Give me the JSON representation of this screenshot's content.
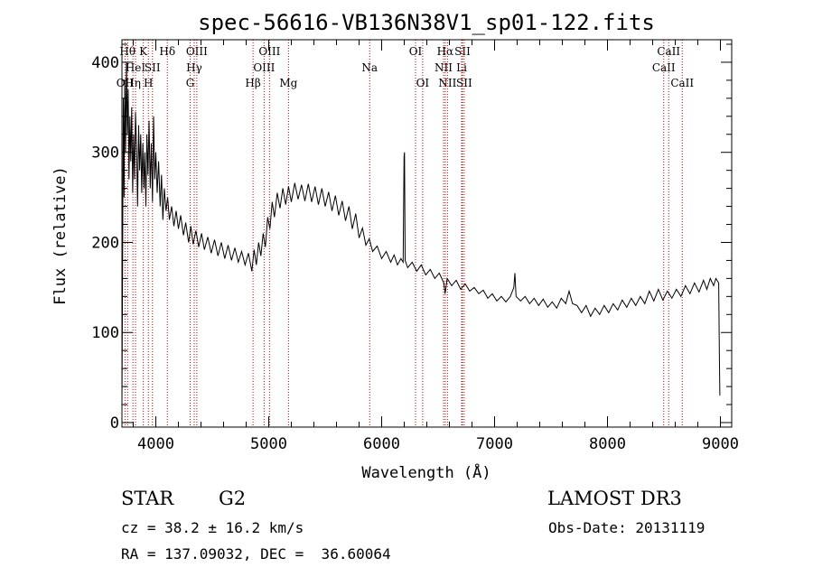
{
  "chart_data": {
    "type": "line",
    "title": "spec-56616-VB136N38V1_sp01-122.fits",
    "xlabel": "Wavelength (Å)",
    "ylabel": "Flux (relative)",
    "xlim": [
      3700,
      9100
    ],
    "ylim": [
      -5,
      425
    ],
    "xticks": [
      4000,
      5000,
      6000,
      7000,
      8000,
      9000
    ],
    "xtick_labels": [
      "4000",
      "5000",
      "6000",
      "7000",
      "8000",
      "9000"
    ],
    "yticks": [
      0,
      100,
      200,
      300,
      400
    ],
    "ytick_labels": [
      "0",
      "100",
      "200",
      "300",
      "400"
    ],
    "series": [
      {
        "name": "flux",
        "points": [
          [
            3700,
            20
          ],
          [
            3705,
            150
          ],
          [
            3712,
            360
          ],
          [
            3718,
            250
          ],
          [
            3725,
            380
          ],
          [
            3732,
            300
          ],
          [
            3740,
            400
          ],
          [
            3748,
            320
          ],
          [
            3755,
            370
          ],
          [
            3762,
            270
          ],
          [
            3770,
            340
          ],
          [
            3778,
            290
          ],
          [
            3786,
            350
          ],
          [
            3795,
            255
          ],
          [
            3803,
            320
          ],
          [
            3812,
            270
          ],
          [
            3820,
            345
          ],
          [
            3830,
            300
          ],
          [
            3838,
            240
          ],
          [
            3848,
            330
          ],
          [
            3857,
            280
          ],
          [
            3866,
            320
          ],
          [
            3875,
            255
          ],
          [
            3885,
            310
          ],
          [
            3894,
            260
          ],
          [
            3902,
            300
          ],
          [
            3912,
            240
          ],
          [
            3921,
            320
          ],
          [
            3930,
            275
          ],
          [
            3940,
            335
          ],
          [
            3950,
            260
          ],
          [
            3960,
            310
          ],
          [
            3970,
            245
          ],
          [
            3980,
            340
          ],
          [
            3990,
            270
          ],
          [
            4000,
            300
          ],
          [
            4012,
            255
          ],
          [
            4025,
            290
          ],
          [
            4038,
            240
          ],
          [
            4050,
            275
          ],
          [
            4062,
            225
          ],
          [
            4075,
            260
          ],
          [
            4090,
            235
          ],
          [
            4105,
            250
          ],
          [
            4120,
            225
          ],
          [
            4140,
            240
          ],
          [
            4160,
            218
          ],
          [
            4180,
            235
          ],
          [
            4200,
            215
          ],
          [
            4220,
            230
          ],
          [
            4245,
            208
          ],
          [
            4265,
            222
          ],
          [
            4290,
            200
          ],
          [
            4310,
            218
          ],
          [
            4330,
            198
          ],
          [
            4355,
            213
          ],
          [
            4380,
            195
          ],
          [
            4405,
            210
          ],
          [
            4430,
            192
          ],
          [
            4460,
            206
          ],
          [
            4490,
            188
          ],
          [
            4520,
            203
          ],
          [
            4550,
            185
          ],
          [
            4580,
            200
          ],
          [
            4610,
            182
          ],
          [
            4640,
            197
          ],
          [
            4670,
            180
          ],
          [
            4700,
            194
          ],
          [
            4730,
            178
          ],
          [
            4760,
            190
          ],
          [
            4790,
            175
          ],
          [
            4820,
            188
          ],
          [
            4850,
            168
          ],
          [
            4870,
            192
          ],
          [
            4890,
            175
          ],
          [
            4910,
            200
          ],
          [
            4930,
            185
          ],
          [
            4950,
            210
          ],
          [
            4970,
            195
          ],
          [
            4990,
            228
          ],
          [
            5010,
            215
          ],
          [
            5030,
            245
          ],
          [
            5050,
            228
          ],
          [
            5075,
            255
          ],
          [
            5100,
            238
          ],
          [
            5125,
            260
          ],
          [
            5150,
            242
          ],
          [
            5175,
            262
          ],
          [
            5200,
            245
          ],
          [
            5230,
            266
          ],
          [
            5260,
            248
          ],
          [
            5290,
            264
          ],
          [
            5320,
            246
          ],
          [
            5350,
            265
          ],
          [
            5380,
            245
          ],
          [
            5410,
            262
          ],
          [
            5440,
            242
          ],
          [
            5470,
            260
          ],
          [
            5500,
            240
          ],
          [
            5530,
            256
          ],
          [
            5560,
            235
          ],
          [
            5590,
            252
          ],
          [
            5620,
            230
          ],
          [
            5650,
            246
          ],
          [
            5680,
            224
          ],
          [
            5710,
            240
          ],
          [
            5740,
            215
          ],
          [
            5770,
            232
          ],
          [
            5800,
            205
          ],
          [
            5830,
            216
          ],
          [
            5860,
            197
          ],
          [
            5890,
            204
          ],
          [
            5920,
            190
          ],
          [
            5960,
            196
          ],
          [
            6000,
            182
          ],
          [
            6040,
            190
          ],
          [
            6080,
            178
          ],
          [
            6110,
            186
          ],
          [
            6140,
            175
          ],
          [
            6170,
            182
          ],
          [
            6190,
            178
          ],
          [
            6198,
            295
          ],
          [
            6202,
            300
          ],
          [
            6208,
            180
          ],
          [
            6230,
            172
          ],
          [
            6270,
            178
          ],
          [
            6310,
            168
          ],
          [
            6350,
            175
          ],
          [
            6390,
            164
          ],
          [
            6430,
            170
          ],
          [
            6470,
            160
          ],
          [
            6510,
            166
          ],
          [
            6550,
            155
          ],
          [
            6562,
            143
          ],
          [
            6580,
            160
          ],
          [
            6620,
            152
          ],
          [
            6660,
            158
          ],
          [
            6700,
            148
          ],
          [
            6740,
            154
          ],
          [
            6780,
            146
          ],
          [
            6820,
            150
          ],
          [
            6860,
            143
          ],
          [
            6900,
            147
          ],
          [
            6940,
            138
          ],
          [
            6980,
            143
          ],
          [
            7020,
            135
          ],
          [
            7060,
            140
          ],
          [
            7100,
            134
          ],
          [
            7140,
            140
          ],
          [
            7170,
            150
          ],
          [
            7180,
            166
          ],
          [
            7190,
            140
          ],
          [
            7230,
            135
          ],
          [
            7270,
            140
          ],
          [
            7310,
            132
          ],
          [
            7350,
            138
          ],
          [
            7390,
            130
          ],
          [
            7430,
            137
          ],
          [
            7470,
            128
          ],
          [
            7510,
            134
          ],
          [
            7550,
            127
          ],
          [
            7590,
            138
          ],
          [
            7630,
            132
          ],
          [
            7660,
            146
          ],
          [
            7690,
            132
          ],
          [
            7730,
            130
          ],
          [
            7770,
            122
          ],
          [
            7810,
            130
          ],
          [
            7850,
            118
          ],
          [
            7890,
            127
          ],
          [
            7930,
            120
          ],
          [
            7970,
            130
          ],
          [
            8010,
            122
          ],
          [
            8050,
            132
          ],
          [
            8090,
            125
          ],
          [
            8130,
            136
          ],
          [
            8170,
            128
          ],
          [
            8210,
            138
          ],
          [
            8250,
            130
          ],
          [
            8290,
            140
          ],
          [
            8330,
            132
          ],
          [
            8370,
            146
          ],
          [
            8410,
            135
          ],
          [
            8450,
            148
          ],
          [
            8490,
            136
          ],
          [
            8530,
            146
          ],
          [
            8570,
            138
          ],
          [
            8610,
            148
          ],
          [
            8650,
            140
          ],
          [
            8690,
            152
          ],
          [
            8730,
            143
          ],
          [
            8770,
            155
          ],
          [
            8810,
            145
          ],
          [
            8850,
            158
          ],
          [
            8880,
            148
          ],
          [
            8910,
            160
          ],
          [
            8940,
            152
          ],
          [
            8960,
            160
          ],
          [
            8985,
            155
          ],
          [
            8990,
            80
          ],
          [
            8995,
            30
          ]
        ]
      }
    ],
    "lines": [
      {
        "wave": 3727,
        "label": "OII",
        "row": 2
      },
      {
        "wave": 3750,
        "label": "Hθ",
        "row": 0
      },
      {
        "wave": 3797,
        "label": "Hη",
        "row": 2
      },
      {
        "wave": 3820,
        "label": "HeI",
        "row": 1
      },
      {
        "wave": 3889,
        "label": "K",
        "row": 0
      },
      {
        "wave": 3934,
        "label": "H",
        "row": 2
      },
      {
        "wave": 3970,
        "label": "SII",
        "row": 1
      },
      {
        "wave": 4102,
        "label": "Hδ",
        "row": 0
      },
      {
        "wave": 4304,
        "label": "G",
        "row": 2
      },
      {
        "wave": 4340,
        "label": "Hγ",
        "row": 1
      },
      {
        "wave": 4363,
        "label": "OIII",
        "row": 0
      },
      {
        "wave": 4861,
        "label": "Hβ",
        "row": 2
      },
      {
        "wave": 4959,
        "label": "OIII",
        "row": 1
      },
      {
        "wave": 5007,
        "label": "OIII",
        "row": 0
      },
      {
        "wave": 5175,
        "label": "Mg",
        "row": 2
      },
      {
        "wave": 5894,
        "label": "Na",
        "row": 1
      },
      {
        "wave": 6300,
        "label": "OI",
        "row": 0
      },
      {
        "wave": 6363,
        "label": "OI",
        "row": 2
      },
      {
        "wave": 6548,
        "label": "NII",
        "row": 1
      },
      {
        "wave": 6563,
        "label": "Hα",
        "row": 0
      },
      {
        "wave": 6583,
        "label": "NII",
        "row": 2
      },
      {
        "wave": 6708,
        "label": "Li",
        "row": 1
      },
      {
        "wave": 6716,
        "label": "SII",
        "row": 0
      },
      {
        "wave": 6731,
        "label": "SII",
        "row": 2
      },
      {
        "wave": 8498,
        "label": "CaII",
        "row": 1
      },
      {
        "wave": 8542,
        "label": "CaII",
        "row": 0
      },
      {
        "wave": 8662,
        "label": "CaII",
        "row": 2
      }
    ],
    "line_color": "#cc0000",
    "spectrum_color": "#000000"
  },
  "info": {
    "class_label": "STAR",
    "subclass": "G2",
    "survey": "LAMOST DR3",
    "redshift_text": "cz = 38.2 ± 16.2 km/s",
    "obs_date_text": "Obs-Date: 20131119",
    "coords_text": "RA = 137.09032, DEC =  36.60064"
  }
}
